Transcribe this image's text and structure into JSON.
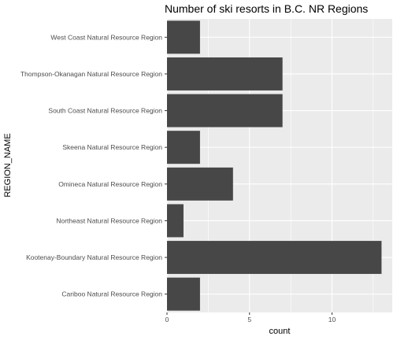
{
  "chart_data": {
    "type": "bar",
    "orientation": "horizontal",
    "title": "Number of ski resorts in B.C. NR Regions",
    "xlabel": "count",
    "ylabel": "REGION_NAME",
    "categories": [
      "West Coast Natural Resource Region",
      "Thompson-Okanagan Natural Resource Region",
      "South Coast Natural Resource Region",
      "Skeena Natural Resource Region",
      "Omineca Natural Resource Region",
      "Northeast Natural Resource Region",
      "Kootenay-Boundary Natural Resource Region",
      "Cariboo Natural Resource Region"
    ],
    "values": [
      2,
      7,
      7,
      2,
      4,
      1,
      13,
      2
    ],
    "xlim": [
      0,
      13.65
    ],
    "xticks": [
      0,
      5,
      10
    ],
    "xtick_labels": [
      "0",
      "5",
      "10"
    ],
    "grid": true,
    "colors": {
      "bar": "#474747",
      "panel": "#ebebeb",
      "grid": "#ffffff"
    }
  }
}
